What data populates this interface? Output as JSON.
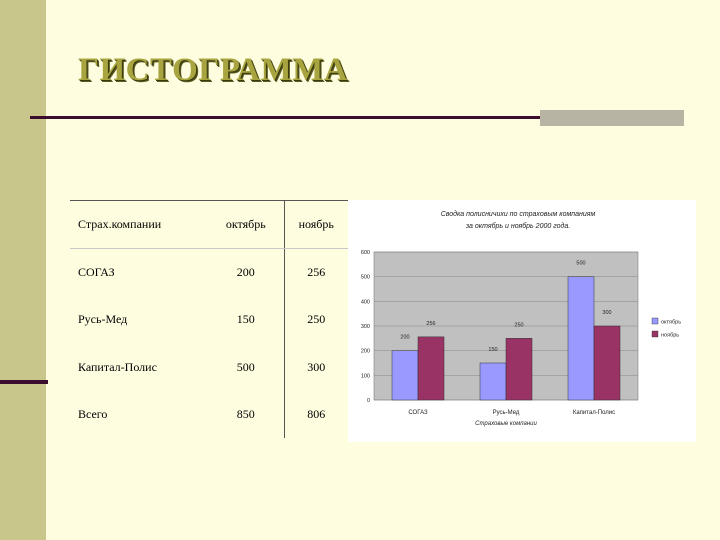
{
  "slide": {
    "title": "ГИСТОГРАММА"
  },
  "table": {
    "headers": [
      "Страх.компании",
      "октябрь",
      "ноябрь"
    ],
    "rows": [
      [
        "СОГАЗ",
        "200",
        "256"
      ],
      [
        "Русь-Мед",
        "150",
        "250"
      ],
      [
        "Капитал-Полис",
        "500",
        "300"
      ],
      [
        "Всего",
        "850",
        "806"
      ]
    ]
  },
  "chart_data": {
    "type": "bar",
    "title": [
      "Сводка полисничихи по страховым компаниям",
      "за октябрь и ноябрь 2000 года."
    ],
    "xlabel": "Страховые компании",
    "ylabel": "",
    "categories": [
      "СОГАЗ",
      "Русь-Мед",
      "Капитал-Полис"
    ],
    "series": [
      {
        "name": "октябрь",
        "values": [
          200,
          150,
          500
        ],
        "color": "#9999ff"
      },
      {
        "name": "ноябрь",
        "values": [
          256,
          250,
          300
        ],
        "color": "#993366"
      }
    ],
    "ylim": [
      0,
      600
    ],
    "yticks": [
      0,
      100,
      200,
      300,
      400,
      500,
      600
    ],
    "grid": true,
    "legend": "right",
    "plot_bg": "#c0c0c0"
  },
  "colors": {
    "background": "#fffde0",
    "side_bar": "#c9c68c",
    "rule": "#3a0d2e"
  }
}
